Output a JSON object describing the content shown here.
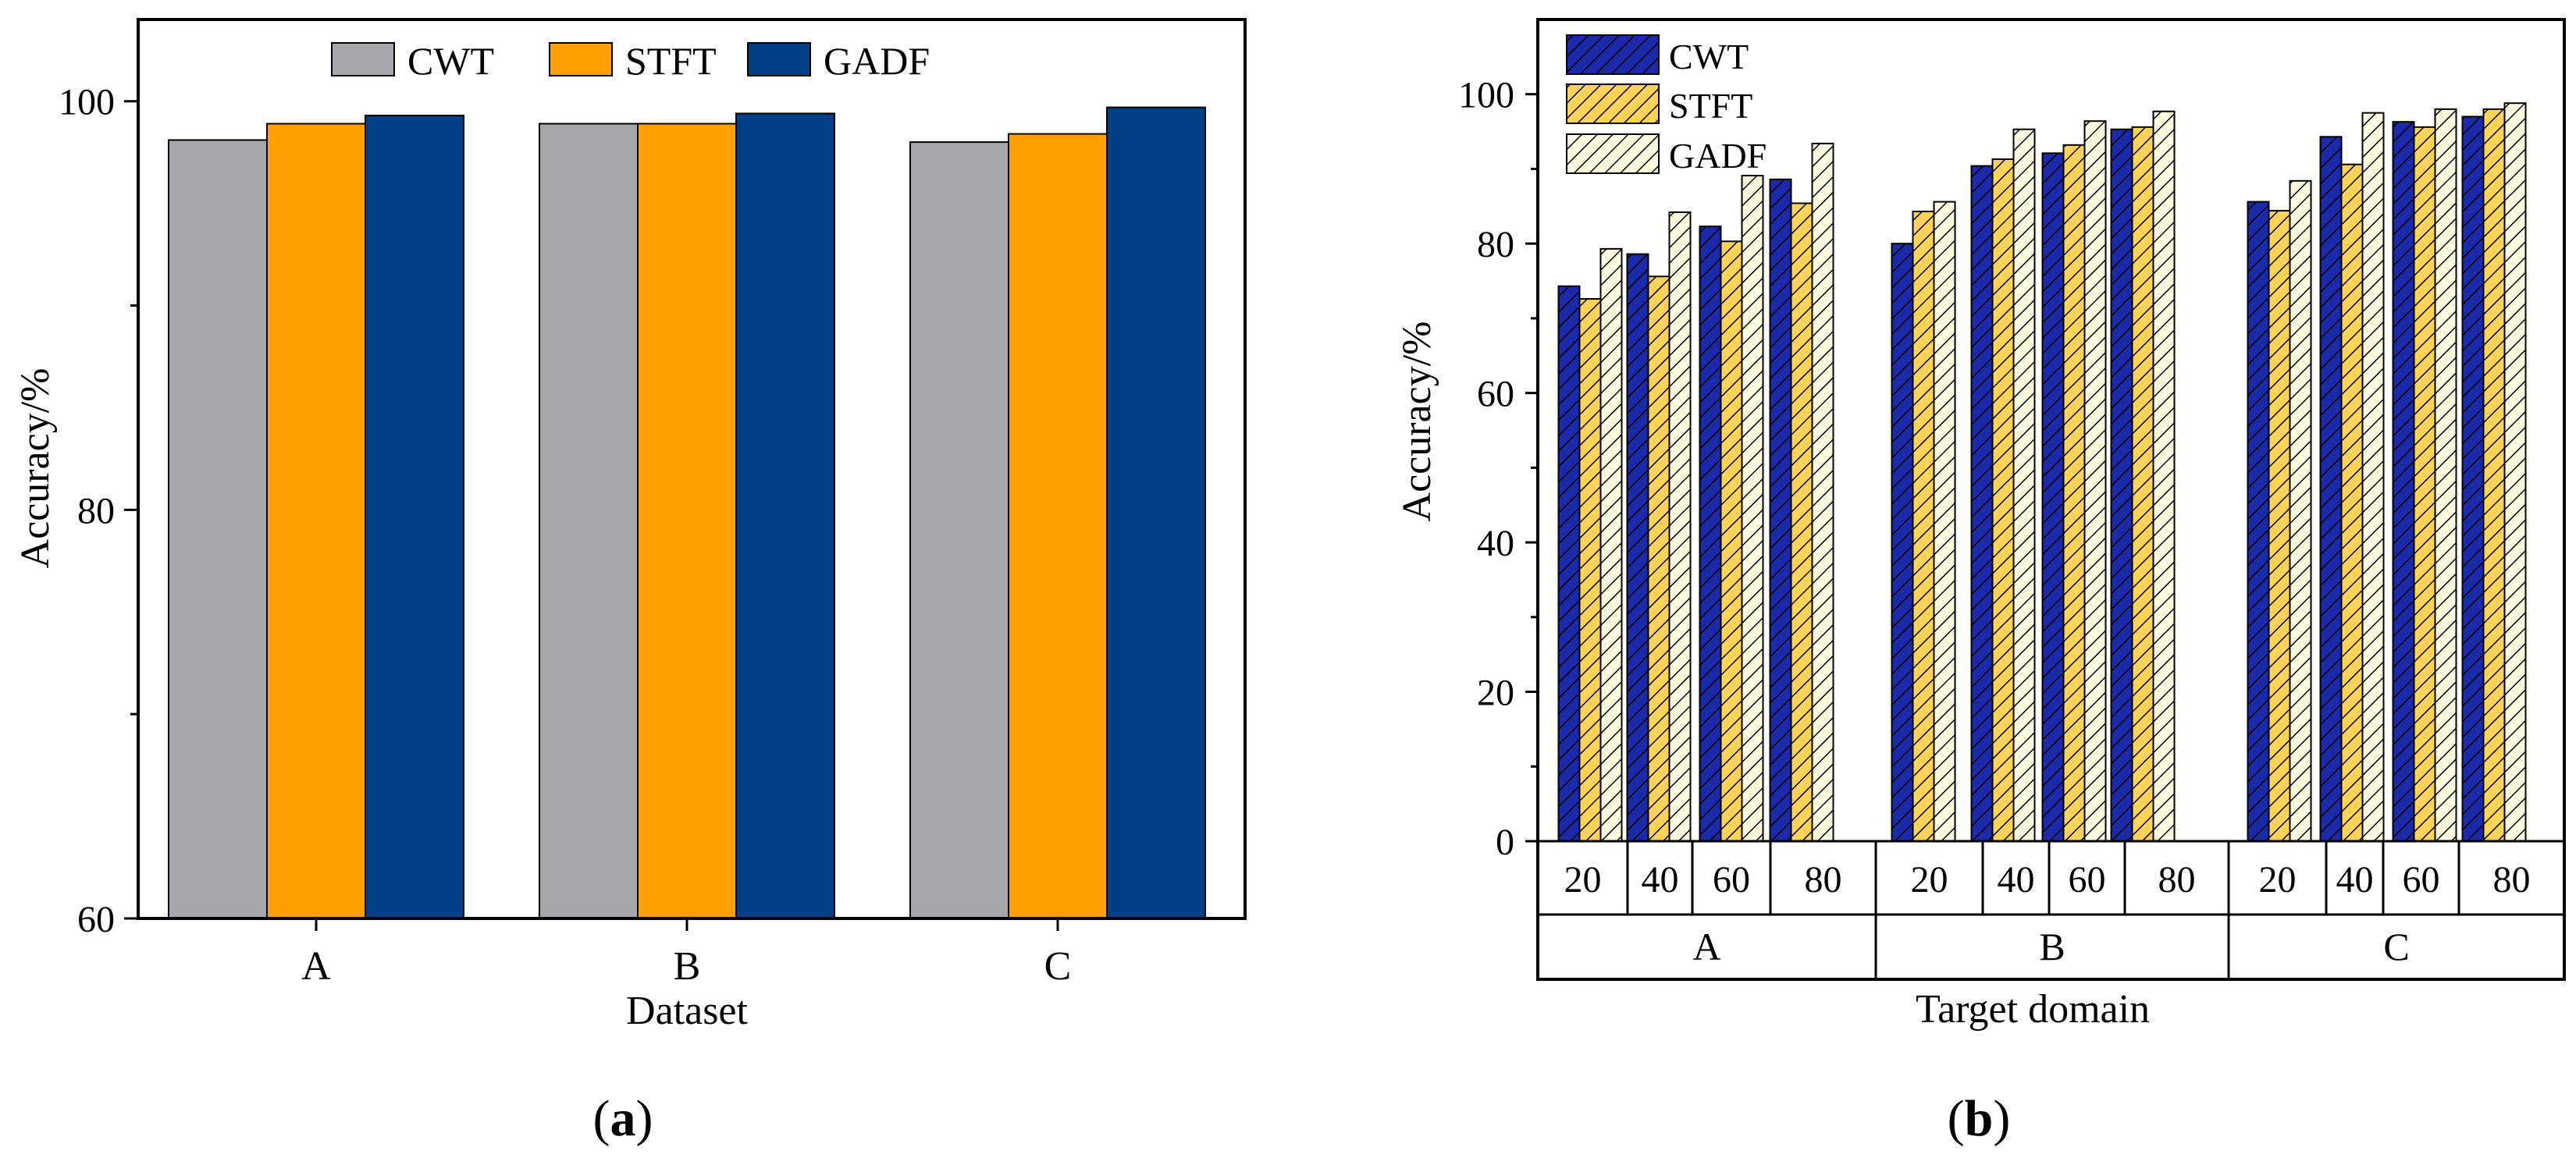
{
  "colors": {
    "CWT_a": "#a7a6aa",
    "STFT_a": "#ffa000",
    "GADF_a": "#003f84",
    "CWT_b": "#1b2aa8",
    "STFT_b": "#ffd35a",
    "GADF_b": "#fbfbdf",
    "hatch": "#000000"
  },
  "captions": {
    "a": "a",
    "b": "b"
  },
  "chart_data": [
    {
      "id": "a",
      "type": "bar",
      "title": "",
      "xlabel": "Dataset",
      "ylabel": "Accuracy/%",
      "categories": [
        "A",
        "B",
        "C"
      ],
      "series": [
        {
          "name": "CWT",
          "values": [
            98.1,
            98.9,
            98.0
          ]
        },
        {
          "name": "STFT",
          "values": [
            98.9,
            98.9,
            98.4
          ]
        },
        {
          "name": "GADF",
          "values": [
            99.3,
            99.4,
            99.7
          ]
        }
      ],
      "ylim": [
        60,
        104
      ],
      "yticks": [
        60,
        80,
        100
      ],
      "legend_position": "top"
    },
    {
      "id": "b",
      "type": "bar",
      "title": "",
      "xlabel": "Target domain",
      "ylabel": "Accuracy/%",
      "groups": [
        "A",
        "B",
        "C"
      ],
      "subcategories": [
        "20",
        "40",
        "60",
        "80"
      ],
      "series": [
        {
          "name": "CWT",
          "values": [
            [
              74.3,
              78.6,
              82.3,
              88.6
            ],
            [
              80.0,
              90.4,
              92.1,
              95.3
            ],
            [
              85.6,
              94.3,
              96.3,
              97.0
            ]
          ]
        },
        {
          "name": "STFT",
          "values": [
            [
              72.6,
              75.6,
              80.3,
              85.4
            ],
            [
              84.3,
              91.3,
              93.2,
              95.6
            ],
            [
              84.4,
              90.6,
              95.6,
              98.0
            ]
          ]
        },
        {
          "name": "GADF",
          "values": [
            [
              79.3,
              84.2,
              89.1,
              93.4
            ],
            [
              85.6,
              95.3,
              96.4,
              97.7
            ],
            [
              88.4,
              97.5,
              98.0,
              98.8
            ]
          ]
        }
      ],
      "ylim": [
        0,
        110
      ],
      "yticks": [
        0,
        20,
        40,
        60,
        80,
        100
      ],
      "legend_position": "top-left"
    }
  ]
}
